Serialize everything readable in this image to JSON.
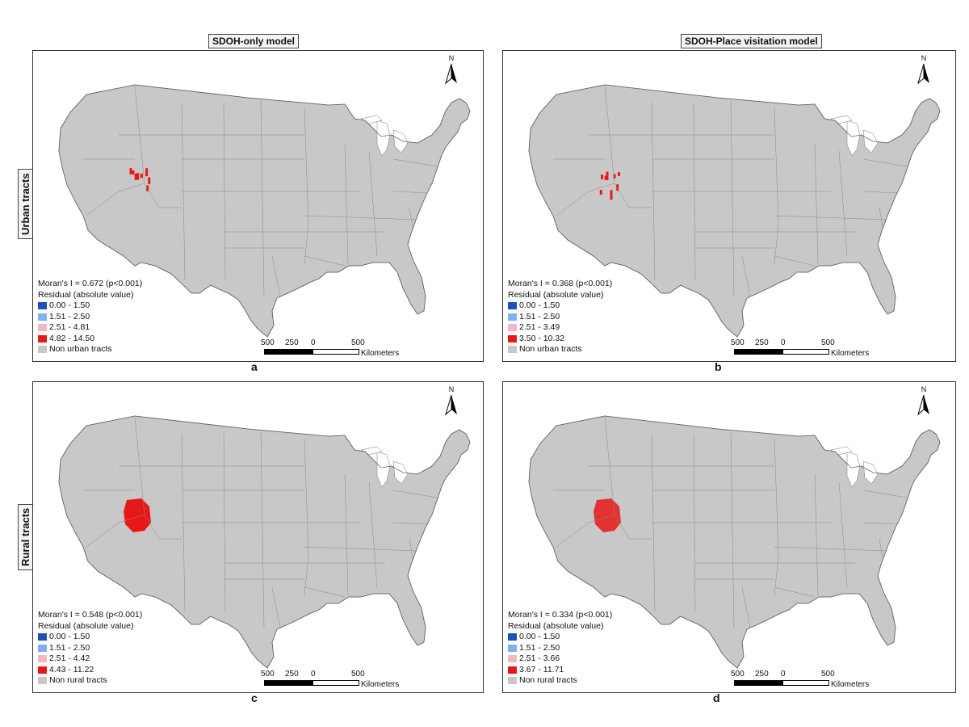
{
  "column_titles": {
    "left": "SDOH-only model",
    "right": "SDOH-Place visitation model"
  },
  "row_titles": {
    "top": "Urban tracts",
    "bottom": "Rural tracts"
  },
  "north_label": "N",
  "scale_bar": {
    "labels": [
      "500",
      "250",
      "0",
      "500"
    ],
    "unit": "Kilometers"
  },
  "colors": {
    "class1": "#1f4fb8",
    "class2": "#7fb0f0",
    "class3": "#f4b8c0",
    "class4": "#e81818",
    "non": "#c8c8c8",
    "border": "#8a8a8a"
  },
  "panels": [
    {
      "letter": "a",
      "morans": "Moran's I  = 0.672 (p<0.001)",
      "residual_title": "Residual (absolute value)",
      "classes": [
        "0.00 - 1.50",
        "1.51 - 2.50",
        "2.51 - 4.81",
        "4.82 - 14.50"
      ],
      "non_label": "Non urban tracts",
      "type": "urban"
    },
    {
      "letter": "b",
      "morans": "Moran's I  = 0.368 (p<0.001)",
      "residual_title": "Residual (absolute value)",
      "classes": [
        "0.00 - 1.50",
        "1.51 - 2.50",
        "2.51 - 3.49",
        "3.50 - 10.32"
      ],
      "non_label": "Non urban tracts",
      "type": "urban"
    },
    {
      "letter": "c",
      "morans": "Moran's I  = 0.548 (p<0.001)",
      "residual_title": "Residual (absolute value)",
      "classes": [
        "0.00 - 1.50",
        "1.51 - 2.50",
        "2.51 - 4.42",
        "4.43 - 11.22"
      ],
      "non_label": "Non rural tracts",
      "type": "rural"
    },
    {
      "letter": "d",
      "morans": "Moran's I  = 0.334 (p<0.001)",
      "residual_title": "Residual (absolute value)",
      "classes": [
        "0.00 - 1.50",
        "1.51 - 2.50",
        "2.51 - 3.66",
        "3.67 - 11.71"
      ],
      "non_label": "Non rural tracts",
      "type": "rural"
    }
  ]
}
